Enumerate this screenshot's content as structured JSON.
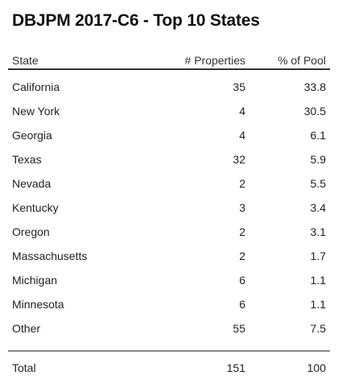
{
  "title": "DBJPM 2017-C6 - Top 10 States",
  "columns": {
    "state": "State",
    "properties": "# Properties",
    "pool": "% of Pool"
  },
  "rows": [
    {
      "state": "California",
      "properties": "35",
      "pool": "33.8"
    },
    {
      "state": "New York",
      "properties": "4",
      "pool": "30.5"
    },
    {
      "state": "Georgia",
      "properties": "4",
      "pool": "6.1"
    },
    {
      "state": "Texas",
      "properties": "32",
      "pool": "5.9"
    },
    {
      "state": "Nevada",
      "properties": "2",
      "pool": "5.5"
    },
    {
      "state": "Kentucky",
      "properties": "3",
      "pool": "3.4"
    },
    {
      "state": "Oregon",
      "properties": "2",
      "pool": "3.1"
    },
    {
      "state": "Massachusetts",
      "properties": "2",
      "pool": "1.7"
    },
    {
      "state": "Michigan",
      "properties": "6",
      "pool": "1.1"
    },
    {
      "state": "Minnesota",
      "properties": "6",
      "pool": "1.1"
    },
    {
      "state": "Other",
      "properties": "55",
      "pool": "7.5"
    }
  ],
  "total": {
    "label": "Total",
    "properties": "151",
    "pool": "100"
  }
}
